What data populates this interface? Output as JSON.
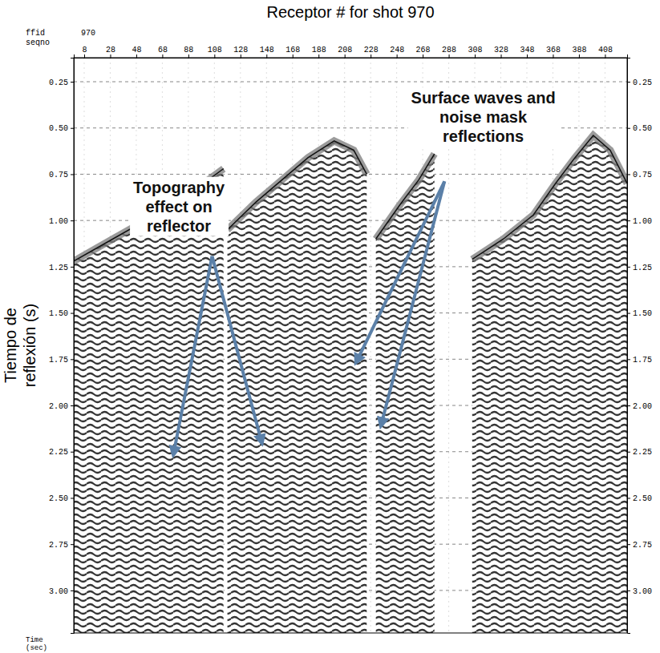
{
  "chart_data": {
    "type": "seismic",
    "title": "Receptor # for shot 970",
    "y_label": "Tiempo de reflexión (s)",
    "time_label": "Time (sec)",
    "header": {
      "ffid_label": "ffid",
      "seqno_label": "seqno",
      "ffid": 970
    },
    "x": [
      0,
      30,
      60,
      90,
      115,
      116,
      118,
      140,
      160,
      180,
      200,
      215,
      225,
      228,
      232,
      250,
      265,
      277,
      290,
      306,
      330,
      353,
      370,
      385,
      399,
      412,
      425
    ],
    "values": [
      1.22,
      1.1,
      0.98,
      0.85,
      0.72,
      null,
      1.05,
      0.9,
      0.78,
      0.66,
      0.57,
      0.62,
      0.75,
      null,
      1.1,
      0.92,
      0.78,
      0.64,
      null,
      1.21,
      1.1,
      0.97,
      0.8,
      0.66,
      0.54,
      0.62,
      0.8
    ],
    "xlim": [
      0,
      425
    ],
    "ylim": [
      0.12,
      3.23
    ],
    "xticks": [
      8,
      28,
      48,
      68,
      88,
      108,
      128,
      148,
      168,
      188,
      208,
      228,
      248,
      268,
      288,
      308,
      328,
      348,
      368,
      388,
      408
    ],
    "yticks": [
      0.25,
      {
        "value": 0.5,
        "label": "0.50"
      },
      {
        "value": 0.75,
        "label": "0.75"
      },
      {
        "value": 1.0,
        "label": "1.00"
      },
      {
        "value": 1.25,
        "label": "1.25"
      },
      {
        "value": 1.5,
        "label": "1.50"
      },
      {
        "value": 1.75,
        "label": "1.75"
      },
      {
        "value": 2.0,
        "label": "2.00"
      },
      {
        "value": 2.25,
        "label": "2.25"
      },
      {
        "value": 2.5,
        "label": "2.50"
      },
      {
        "value": 2.75,
        "label": "2.75"
      },
      {
        "value": 3.0,
        "label": "3.00"
      }
    ],
    "grid": true,
    "annotations": [
      {
        "text": "Topography effect on reflector"
      },
      {
        "text": "Surface waves and noise mask reflections"
      }
    ]
  }
}
